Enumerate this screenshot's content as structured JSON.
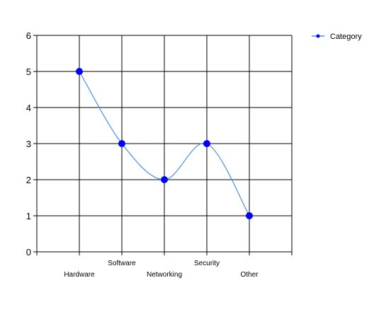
{
  "chart_data": {
    "type": "line",
    "smooth": true,
    "categories": [
      "Hardware",
      "Software",
      "Networking",
      "Security",
      "Other"
    ],
    "series": [
      {
        "name": "Category",
        "values": [
          5,
          3,
          2,
          3,
          1
        ],
        "color": "#4a90e2",
        "marker_color": "#0000ff"
      }
    ],
    "ylim": [
      0,
      6
    ],
    "yticks": [
      0,
      1,
      2,
      3,
      4,
      5,
      6
    ],
    "grid": true,
    "grid_color": "#000000",
    "legend_position": "top-right",
    "title": "",
    "xlabel": "",
    "ylabel": ""
  }
}
